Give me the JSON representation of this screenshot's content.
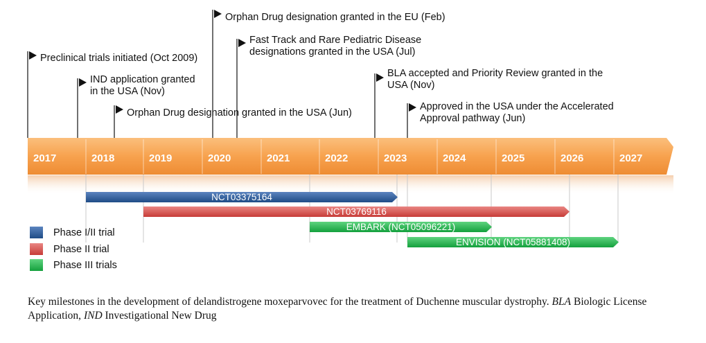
{
  "years": [
    "2017",
    "2018",
    "2019",
    "2020",
    "2021",
    "2022",
    "2023",
    "2024",
    "2025",
    "2026",
    "2027"
  ],
  "milestones": [
    {
      "lines": [
        "Preclinical trials initiated (Oct 2009)"
      ]
    },
    {
      "lines": [
        "IND application granted",
        "in the USA (Nov)"
      ]
    },
    {
      "lines": [
        "Orphan Drug designation granted in the USA (Jun)"
      ]
    },
    {
      "lines": [
        "Orphan Drug designation granted in the EU (Feb)"
      ]
    },
    {
      "lines": [
        "Fast Track and Rare Pediatric Disease",
        "designations granted in the USA (Jul)"
      ]
    },
    {
      "lines": [
        "BLA accepted and Priority Review granted in the",
        "USA (Nov)"
      ]
    },
    {
      "lines": [
        "Approved in the USA under the Accelerated",
        "Approval pathway (Jun)"
      ]
    }
  ],
  "trials": [
    {
      "label": "NCT03375164",
      "phase": "phase1_2"
    },
    {
      "label": "NCT03769116",
      "phase": "phase2"
    },
    {
      "label": "EMBARK (NCT05096221)",
      "phase": "phase3"
    },
    {
      "label": "ENVISION (NCT05881408)",
      "phase": "phase3"
    }
  ],
  "legend": [
    {
      "key": "phase1_2",
      "label": "Phase I/II trial"
    },
    {
      "key": "phase2",
      "label": "Phase II trial"
    },
    {
      "key": "phase3",
      "label": "Phase III trials"
    }
  ],
  "colors": {
    "timeline": "#f7a24e",
    "timeline_dark": "#e8862a",
    "phase1_2": "#2f5f9e",
    "phase2": "#d9534f",
    "phase3": "#25b64f",
    "line": "#222222",
    "year_text": "#ffffff"
  },
  "caption": {
    "part1": "Key milestones in the development of delandistrogene moxeparvovec for the treatment of Duchenne muscular dystrophy. ",
    "abbr1": "BLA",
    "part2": " Biologic License Application, ",
    "abbr2": "IND",
    "part3": " Investigational New Drug"
  }
}
